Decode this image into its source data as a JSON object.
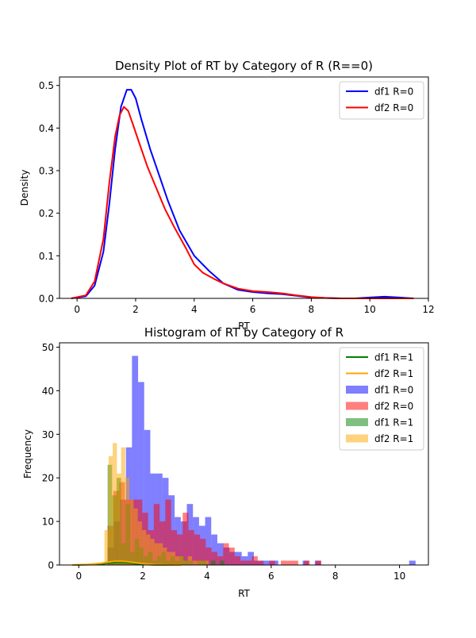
{
  "chart_data": [
    {
      "type": "line",
      "title": "Density Plot of RT by Category of R (R==0)",
      "xlabel": "RT",
      "ylabel": "Density",
      "xlim": [
        -0.6,
        12.0
      ],
      "ylim": [
        0,
        0.52
      ],
      "xticks": [
        0,
        2,
        4,
        6,
        8,
        10,
        12
      ],
      "yticks": [
        0.0,
        0.1,
        0.2,
        0.3,
        0.4,
        0.5
      ],
      "xtick_labels": [
        "0",
        "2",
        "4",
        "6",
        "8",
        "10",
        "12"
      ],
      "ytick_labels": [
        "0.0",
        "0.1",
        "0.2",
        "0.3",
        "0.4",
        "0.5"
      ],
      "grid": false,
      "legend_position": "top-right",
      "series": [
        {
          "name": "df1 R=0",
          "color": "#0000ff",
          "x": [
            -0.2,
            0.3,
            0.6,
            0.9,
            1.1,
            1.3,
            1.5,
            1.7,
            1.85,
            2.0,
            2.2,
            2.5,
            2.8,
            3.1,
            3.5,
            4.0,
            4.5,
            5.0,
            5.5,
            6.0,
            6.5,
            7.0,
            7.5,
            8.0,
            8.5,
            9.0,
            9.5,
            10.0,
            10.5,
            11.0,
            11.5
          ],
          "y": [
            0.0,
            0.005,
            0.03,
            0.11,
            0.22,
            0.35,
            0.45,
            0.49,
            0.49,
            0.47,
            0.42,
            0.35,
            0.29,
            0.23,
            0.16,
            0.1,
            0.065,
            0.035,
            0.02,
            0.015,
            0.012,
            0.01,
            0.006,
            0.002,
            0.001,
            0.0,
            0.0,
            0.002,
            0.004,
            0.002,
            0.0
          ]
        },
        {
          "name": "df2 R=0",
          "color": "#ff0000",
          "x": [
            -0.2,
            0.3,
            0.6,
            0.9,
            1.1,
            1.3,
            1.45,
            1.6,
            1.75,
            1.9,
            2.1,
            2.4,
            2.7,
            3.0,
            3.3,
            3.7,
            4.0,
            4.3,
            4.7,
            5.0,
            5.5,
            6.0,
            6.5,
            7.0,
            7.5,
            8.0,
            8.5,
            9.0,
            9.5,
            10.0,
            10.5,
            11.0,
            11.5
          ],
          "y": [
            0.0,
            0.007,
            0.04,
            0.14,
            0.27,
            0.38,
            0.43,
            0.45,
            0.44,
            0.41,
            0.37,
            0.31,
            0.26,
            0.21,
            0.17,
            0.12,
            0.08,
            0.06,
            0.045,
            0.035,
            0.023,
            0.017,
            0.015,
            0.012,
            0.007,
            0.003,
            0.001,
            0.0,
            0.0,
            0.0,
            0.0,
            0.0,
            0.0
          ]
        }
      ]
    },
    {
      "type": "bar",
      "title": "Histogram of RT by Category of R",
      "xlabel": "RT",
      "ylabel": "Frequency",
      "xlim": [
        -0.6,
        10.9
      ],
      "ylim": [
        0,
        51
      ],
      "xticks": [
        0,
        2,
        4,
        6,
        8,
        10
      ],
      "yticks": [
        0,
        10,
        20,
        30,
        40,
        50
      ],
      "xtick_labels": [
        "0",
        "2",
        "4",
        "6",
        "8",
        "10"
      ],
      "ytick_labels": [
        "0",
        "10",
        "20",
        "30",
        "40",
        "50"
      ],
      "grid": false,
      "legend_position": "top-right",
      "lines": [
        {
          "name": "df1 R=1",
          "color": "#008000",
          "x": [
            -0.2,
            0.4,
            0.8,
            1.0,
            1.2,
            1.4,
            1.6,
            1.8,
            2.0,
            2.3,
            2.6,
            3.0
          ],
          "y": [
            0.0,
            0.1,
            0.3,
            0.5,
            0.6,
            0.6,
            0.5,
            0.3,
            0.15,
            0.05,
            0.01,
            0.0
          ]
        },
        {
          "name": "df2 R=1",
          "color": "#ffa500",
          "x": [
            -0.2,
            0.3,
            0.7,
            0.9,
            1.1,
            1.3,
            1.5,
            1.7,
            1.9,
            2.1,
            2.4,
            2.8,
            3.2
          ],
          "y": [
            0.0,
            0.15,
            0.4,
            0.65,
            0.85,
            0.9,
            0.8,
            0.6,
            0.4,
            0.25,
            0.1,
            0.02,
            0.0
          ]
        }
      ],
      "histograms": [
        {
          "name": "df1 R=0",
          "color": "#0000ff",
          "alpha": 0.5,
          "bin_edges": [
            0.9,
            1.09,
            1.28,
            1.47,
            1.66,
            1.85,
            2.04,
            2.23,
            2.42,
            2.61,
            2.8,
            2.99,
            3.18,
            3.37,
            3.56,
            3.75,
            3.94,
            4.13,
            4.32,
            4.51,
            4.7,
            4.89,
            5.08,
            5.27,
            5.46,
            5.65,
            5.84,
            6.03,
            6.22,
            6.41,
            6.6,
            6.79,
            6.98,
            7.17,
            7.36,
            7.55
          ],
          "counts": [
            4,
            10,
            15,
            27,
            48,
            42,
            31,
            21,
            21,
            20,
            16,
            11,
            10,
            14,
            11,
            9,
            11,
            7,
            5,
            4,
            3,
            3,
            2,
            3,
            1,
            1,
            1,
            1,
            0,
            0,
            0,
            0,
            1,
            0,
            1
          ],
          "extra_bins": [
            {
              "x0": 10.3,
              "x1": 10.5,
              "count": 1
            }
          ]
        },
        {
          "name": "df2 R=0",
          "color": "#ff0000",
          "alpha": 0.5,
          "bin_edges": [
            0.9,
            1.08,
            1.26,
            1.44,
            1.62,
            1.8,
            1.98,
            2.16,
            2.34,
            2.52,
            2.7,
            2.88,
            3.06,
            3.24,
            3.42,
            3.6,
            3.78,
            3.96,
            4.14,
            4.32,
            4.5,
            4.68,
            4.86,
            5.04,
            5.22,
            5.4,
            5.58,
            5.76,
            5.94,
            6.12,
            6.3,
            6.48,
            6.66,
            6.84,
            7.02,
            7.2,
            7.38,
            7.56
          ],
          "counts": [
            9,
            17,
            19,
            15,
            15,
            15,
            12,
            8,
            14,
            10,
            15,
            8,
            7,
            12,
            8,
            7,
            6,
            4,
            3,
            2,
            5,
            4,
            2,
            1,
            1,
            2,
            1,
            0,
            1,
            0,
            1,
            1,
            1,
            0,
            1,
            0,
            1
          ]
        },
        {
          "name": "df1 R=1",
          "color": "#008000",
          "alpha": 0.5,
          "bin_edges": [
            0.9,
            1.04,
            1.18,
            1.32,
            1.46,
            1.6,
            1.74,
            1.88,
            2.02,
            2.16,
            2.3,
            2.44,
            2.58,
            2.72,
            2.86,
            3.0,
            3.14,
            3.28,
            3.42,
            3.56,
            3.7,
            3.84,
            3.98,
            4.12,
            4.26,
            4.4,
            4.54
          ],
          "counts": [
            23,
            16,
            20,
            5,
            14,
            3,
            6,
            4,
            2,
            3,
            1,
            2,
            3,
            1,
            2,
            1,
            2,
            1,
            1,
            0,
            1,
            1,
            0,
            1,
            0,
            1
          ]
        },
        {
          "name": "df2 R=1",
          "color": "#ffa500",
          "alpha": 0.5,
          "bin_edges": [
            0.8,
            0.93,
            1.06,
            1.19,
            1.32,
            1.45,
            1.58,
            1.71,
            1.84,
            1.97,
            2.1,
            2.23,
            2.36,
            2.49,
            2.62,
            2.75,
            2.88,
            3.01,
            3.14,
            3.27,
            3.4,
            3.53,
            3.66,
            3.79,
            3.92,
            4.05
          ],
          "counts": [
            8,
            25,
            28,
            21,
            27,
            20,
            15,
            13,
            10,
            8,
            7,
            6,
            5,
            5,
            4,
            3,
            3,
            2,
            2,
            1,
            2,
            1,
            1,
            1,
            1
          ]
        }
      ]
    }
  ]
}
